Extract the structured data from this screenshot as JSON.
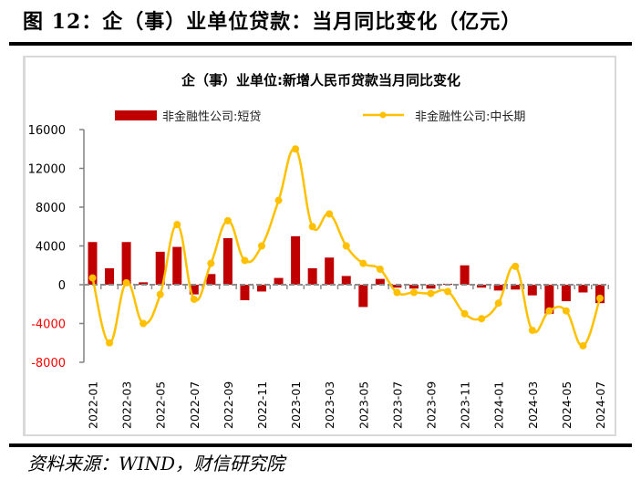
{
  "figure_title": "图 12：企（事）业单位贷款：当月同比变化（亿元）",
  "source": "资料来源：WIND，财信研究院",
  "colors": {
    "bar": "#c00000",
    "line": "#ffc000",
    "negative_tick": "#ff0000",
    "axis": "#808080"
  },
  "chart_data": {
    "type": "bar+line",
    "title": "企（事）业单位:新增人民币贷款当月同比变化",
    "xlabel": "",
    "ylabel": "",
    "ylim": [
      -8000,
      16000
    ],
    "yticks": [
      16000,
      12000,
      8000,
      4000,
      0,
      -4000,
      -8000
    ],
    "ytick_labels": [
      "16000",
      "12000",
      "8000",
      "4000",
      "0",
      "-4000",
      "-8000"
    ],
    "legend_position": "top",
    "categories": [
      "2022-01",
      "2022-02",
      "2022-03",
      "2022-04",
      "2022-05",
      "2022-06",
      "2022-07",
      "2022-08",
      "2022-09",
      "2022-10",
      "2022-11",
      "2022-12",
      "2023-01",
      "2023-02",
      "2023-03",
      "2023-04",
      "2023-05",
      "2023-06",
      "2023-07",
      "2023-08",
      "2023-09",
      "2023-10",
      "2023-11",
      "2023-12",
      "2024-01",
      "2024-02",
      "2024-03",
      "2024-04",
      "2024-05",
      "2024-06",
      "2024-07"
    ],
    "xtick_labels": [
      "2022-01",
      "2022-03",
      "2022-05",
      "2022-07",
      "2022-09",
      "2022-11",
      "2023-01",
      "2023-03",
      "2023-05",
      "2023-07",
      "2023-09",
      "2023-11",
      "2024-01",
      "2024-03",
      "2024-05",
      "2024-07"
    ],
    "series": [
      {
        "name": "非金融性公司:短贷",
        "type": "bar",
        "values": [
          4400,
          1700,
          4400,
          250,
          3400,
          3900,
          -1000,
          1100,
          4800,
          -1600,
          -700,
          700,
          5000,
          1700,
          2800,
          900,
          -2300,
          600,
          -300,
          -400,
          -400,
          100,
          2000,
          -300,
          -600,
          -500,
          -1100,
          -3000,
          -1700,
          -800,
          -1900
        ]
      },
      {
        "name": "非金融性公司:中长期",
        "type": "line",
        "values": [
          700,
          -6000,
          200,
          -4000,
          -1000,
          6200,
          -1500,
          2200,
          6600,
          2500,
          4000,
          8700,
          14000,
          6000,
          7300,
          4000,
          2200,
          1600,
          -800,
          -800,
          -900,
          -700,
          -3000,
          -3500,
          -1900,
          1900,
          -4700,
          -2700,
          -2700,
          -6300,
          -1400
        ]
      }
    ]
  }
}
